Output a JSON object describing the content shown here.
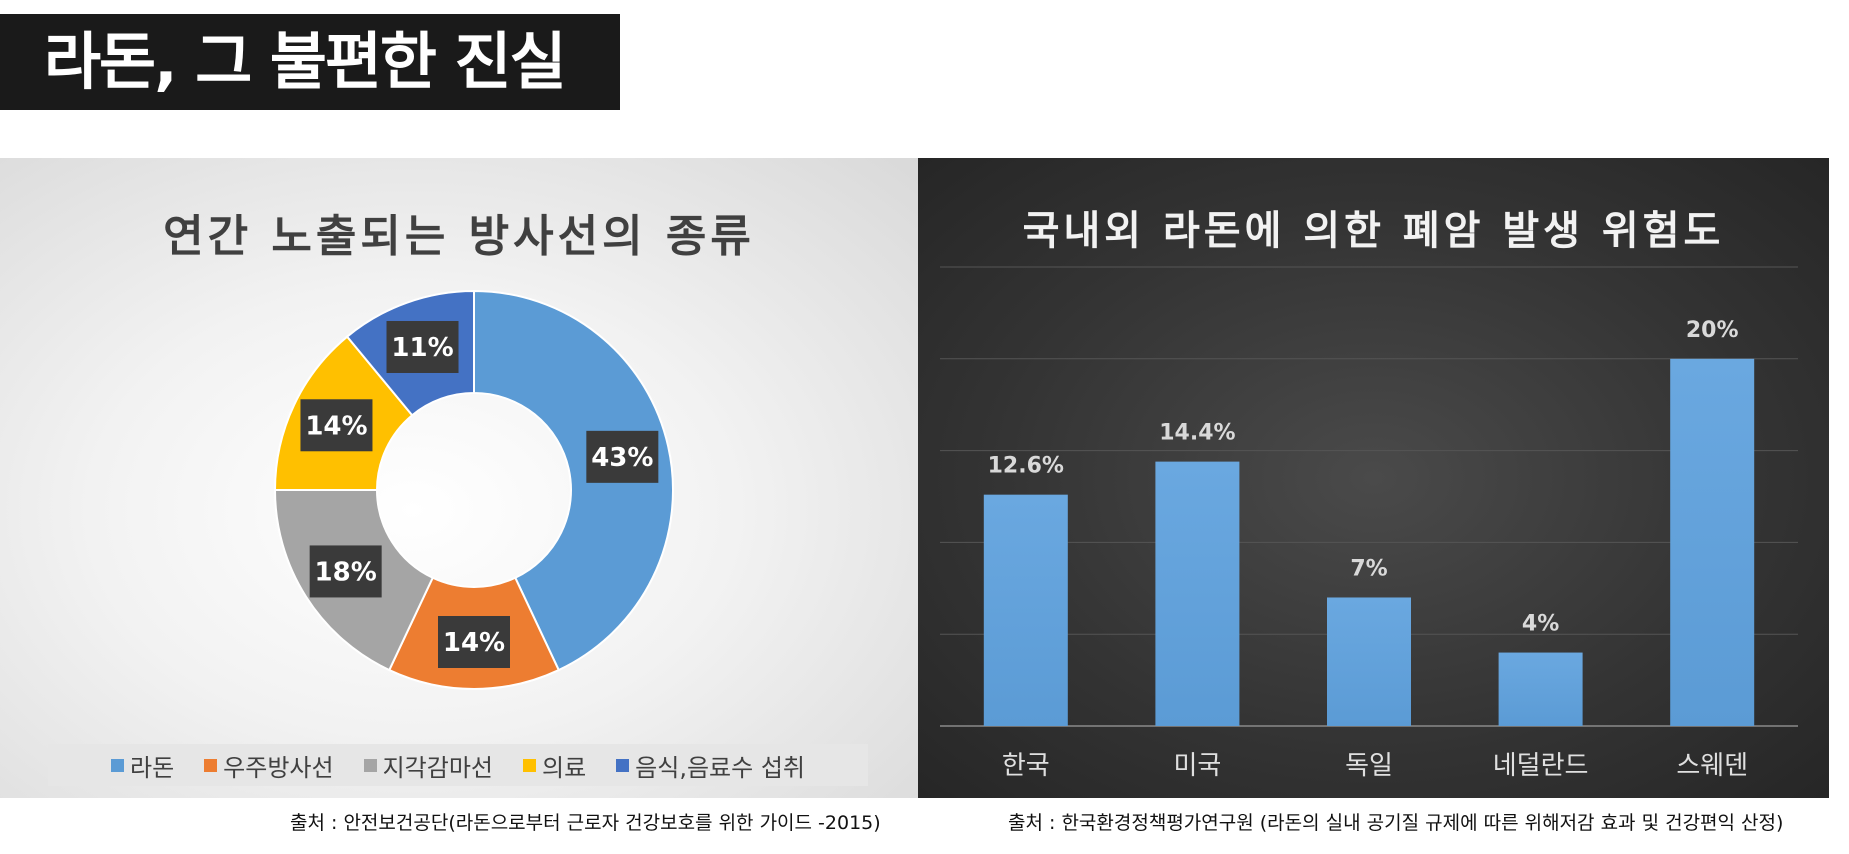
{
  "page_title": "라돈, 그 불편한 진실",
  "chart_data": [
    {
      "type": "pie",
      "title": "연간 노출되는 방사선의 종류",
      "categories": [
        "라돈",
        "우주방사선",
        "지각감마선",
        "의료",
        "음식,음료수 섭취"
      ],
      "values": [
        43,
        14,
        18,
        14,
        11
      ],
      "data_labels": [
        "43%",
        "14%",
        "18%",
        "14%",
        "11%"
      ],
      "colors": [
        "#5b9bd5",
        "#ed7d31",
        "#a5a5a5",
        "#ffc000",
        "#4472c4"
      ],
      "donut": true,
      "legend": "bottom",
      "source": "출처 : 안전보건공단(라돈으로부터 근로자 건강보호를 위한 가이드 -2015)"
    },
    {
      "type": "bar",
      "title": "국내외 라돈에 의한 폐암 발생 위험도",
      "categories": [
        "한국",
        "미국",
        "독일",
        "네덜란드",
        "스웨덴"
      ],
      "values": [
        12.6,
        14.4,
        7,
        4,
        20
      ],
      "data_labels": [
        "12.6%",
        "14.4%",
        "7%",
        "4%",
        "20%"
      ],
      "ylim": [
        0,
        25
      ],
      "grid": true,
      "bar_color": "#5b9bd5",
      "source": "출처 : 한국환경정책평가연구원 (라돈의 실내 공기질 규제에 따른 위해저감 효과 및 건강편익 산정)"
    }
  ]
}
